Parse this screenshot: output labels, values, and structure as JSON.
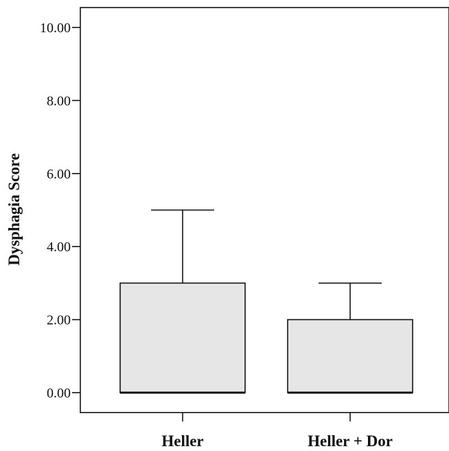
{
  "chart_data": {
    "type": "box",
    "title": "",
    "xlabel": "",
    "ylabel": "Dysphagia Score",
    "ylim": [
      0,
      10
    ],
    "yticks": [
      "0.00",
      "2.00",
      "4.00",
      "6.00",
      "8.00",
      "10.00"
    ],
    "ytick_values": [
      0,
      2,
      4,
      6,
      8,
      10
    ],
    "categories": [
      "Heller",
      "Heller + Dor"
    ],
    "boxes": [
      {
        "category": "Heller",
        "min": 0,
        "q1": 0,
        "median": 0,
        "q3": 3,
        "max": 5
      },
      {
        "category": "Heller + Dor",
        "min": 0,
        "q1": 0,
        "median": 0,
        "q3": 2,
        "max": 3
      }
    ],
    "grid": false,
    "colors": {
      "box_fill": "#e6e6e6",
      "line": "#111111"
    }
  }
}
